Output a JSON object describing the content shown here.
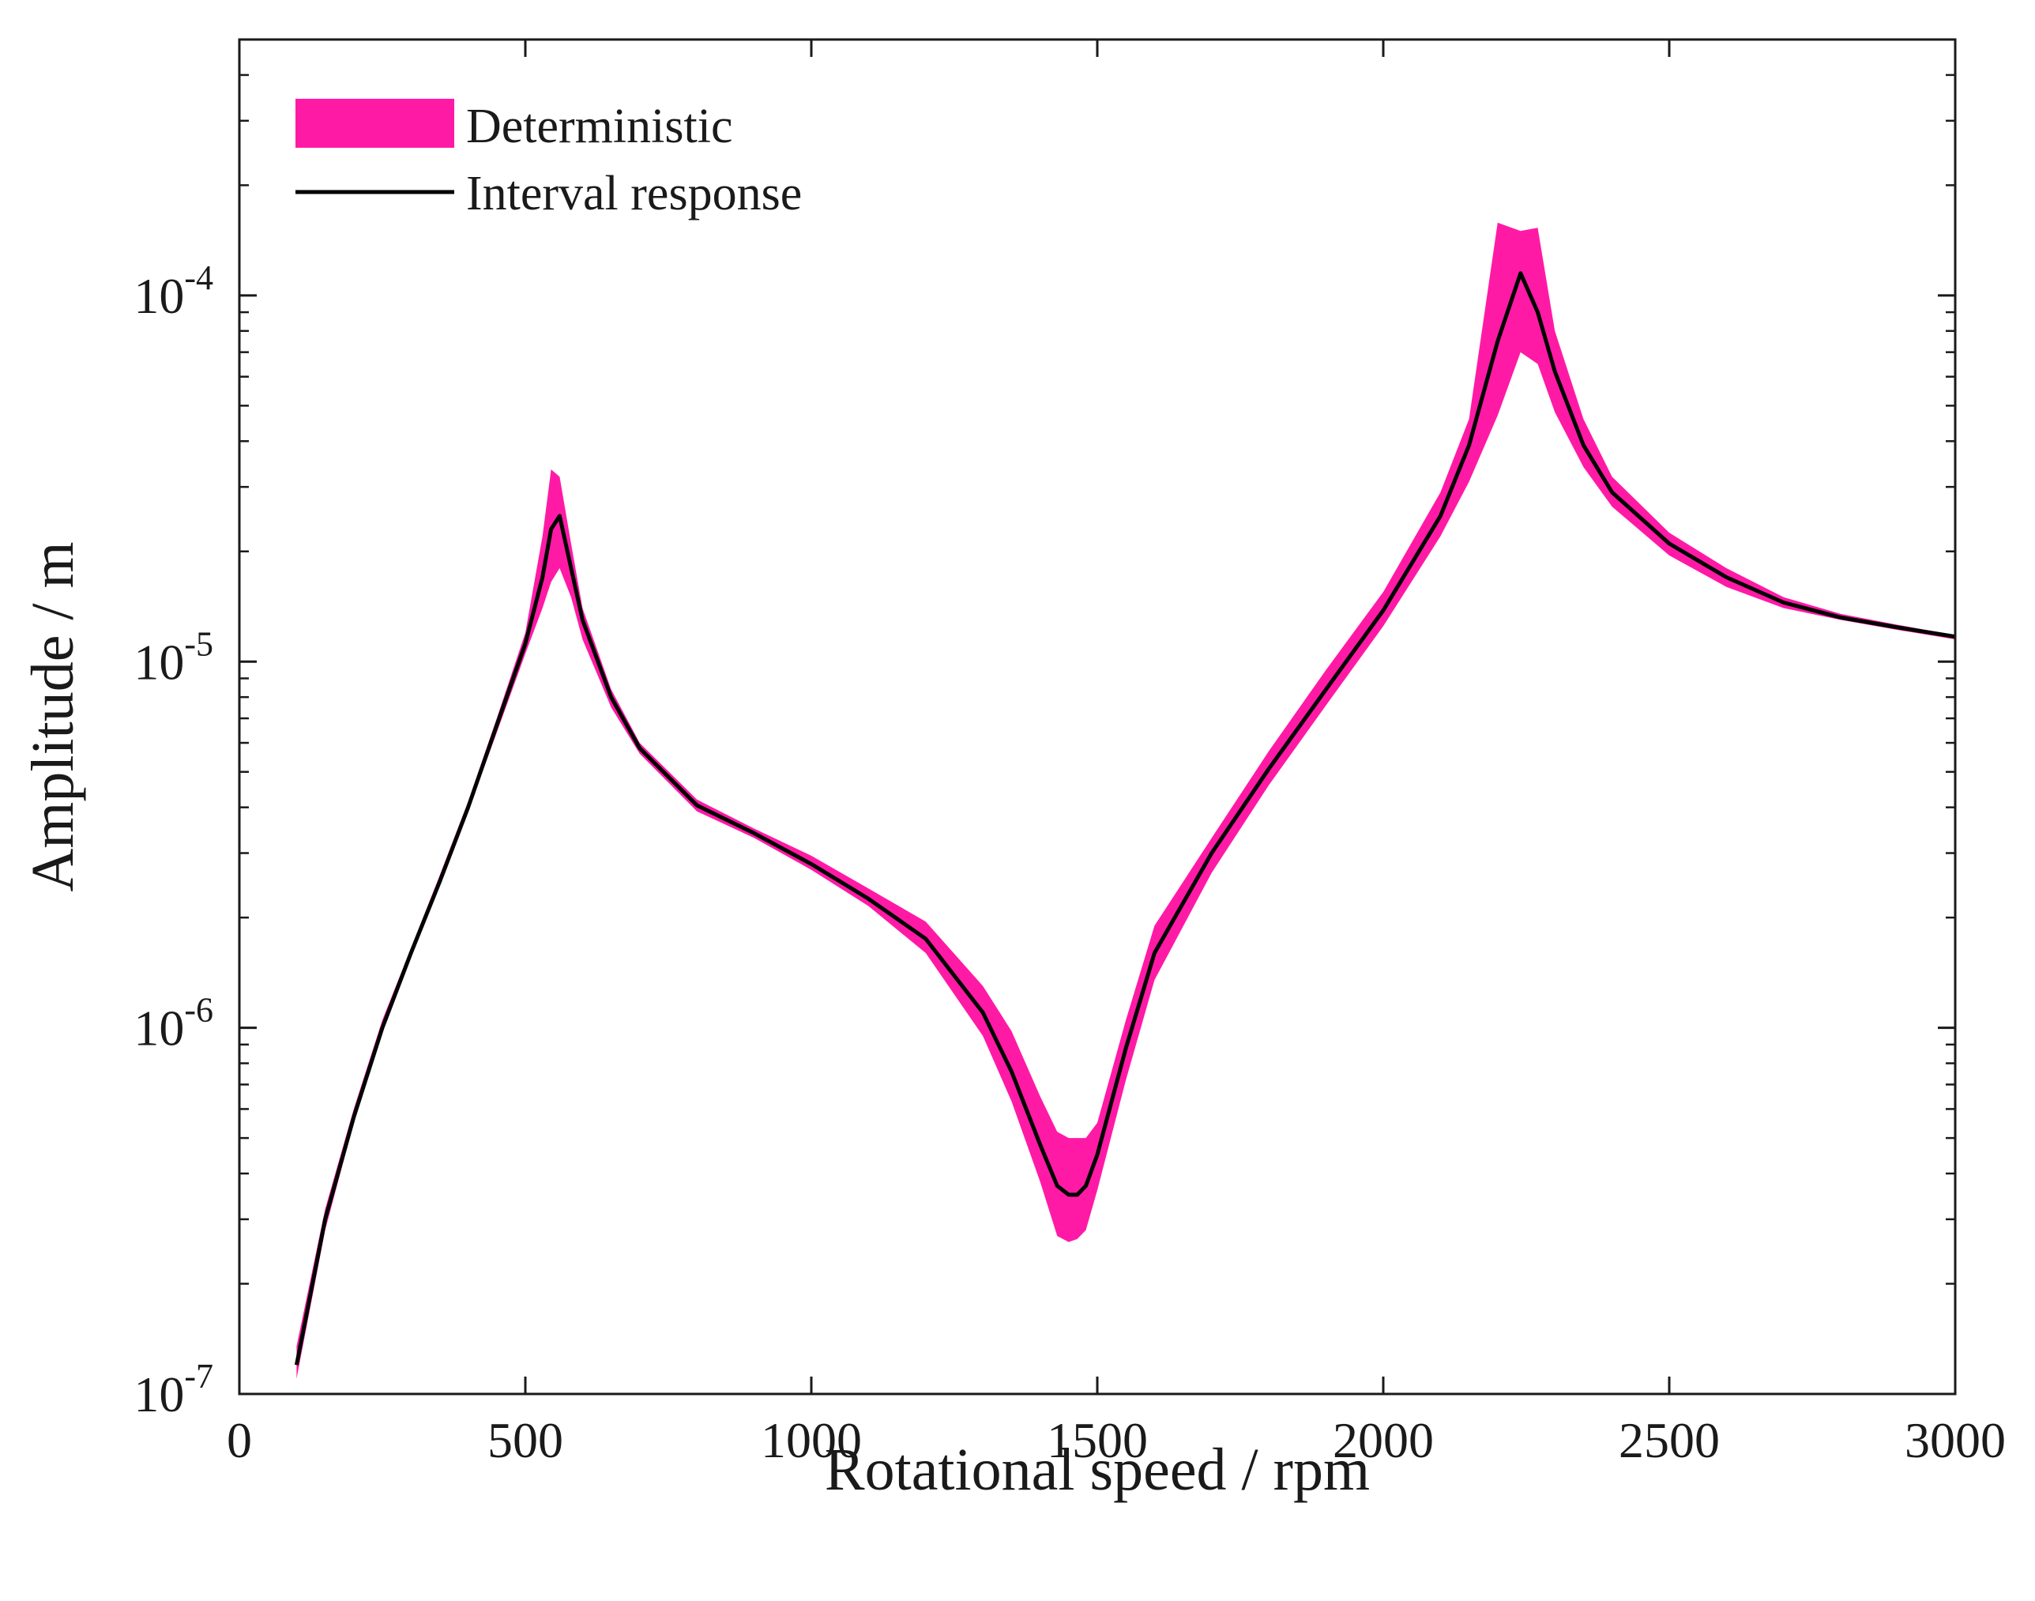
{
  "chart_data": {
    "type": "area",
    "title": "",
    "xlabel": "Rotational speed / rpm",
    "ylabel": "Amplitude / m",
    "xlim": [
      0,
      3000
    ],
    "ylim": [
      1e-07,
      0.0005
    ],
    "yscale": "log",
    "grid": false,
    "legend_position": "top-left",
    "x_ticks": [
      0,
      500,
      1000,
      1500,
      2000,
      2500,
      3000
    ],
    "x_tick_labels": [
      "0",
      "500",
      "1000",
      "1500",
      "2000",
      "2500",
      "3000"
    ],
    "y_ticks": [
      {
        "value": 1e-07,
        "base": "10",
        "exp": "-7"
      },
      {
        "value": 1e-06,
        "base": "10",
        "exp": "-6"
      },
      {
        "value": 1e-05,
        "base": "10",
        "exp": "-5"
      },
      {
        "value": 0.0001,
        "base": "10",
        "exp": "-4"
      }
    ],
    "colors": {
      "band": "#ff1aa6",
      "line": "#000000",
      "axis": "#1a1a1a"
    },
    "series": [
      {
        "name": "Deterministic",
        "kind": "band",
        "x": [
          100,
          150,
          200,
          250,
          300,
          350,
          400,
          450,
          500,
          530,
          545,
          560,
          580,
          600,
          650,
          700,
          800,
          900,
          1000,
          1100,
          1200,
          1300,
          1350,
          1400,
          1430,
          1450,
          1465,
          1480,
          1500,
          1550,
          1600,
          1700,
          1800,
          1900,
          2000,
          2100,
          2150,
          2200,
          2240,
          2270,
          2300,
          2350,
          2400,
          2500,
          2600,
          2700,
          2800,
          2900,
          3000
        ],
        "lower": [
          1.1e-07,
          2.8e-07,
          5.5e-07,
          9.7e-07,
          1.55e-06,
          2.45e-06,
          3.9e-06,
          6.4e-06,
          1.05e-05,
          1.4e-05,
          1.65e-05,
          1.8e-05,
          1.5e-05,
          1.15e-05,
          7.5e-06,
          5.6e-06,
          3.9e-06,
          3.3e-06,
          2.7e-06,
          2.15e-06,
          1.6e-06,
          9.5e-07,
          6.3e-07,
          3.8e-07,
          2.7e-07,
          2.6e-07,
          2.65e-07,
          2.8e-07,
          3.6e-07,
          7.2e-07,
          1.35e-06,
          2.65e-06,
          4.6e-06,
          7.6e-06,
          1.25e-05,
          2.2e-05,
          3.1e-05,
          4.7e-05,
          7e-05,
          6.5e-05,
          4.8e-05,
          3.4e-05,
          2.65e-05,
          1.95e-05,
          1.6e-05,
          1.4e-05,
          1.3e-05,
          1.22e-05,
          1.15e-05
        ],
        "upper": [
          1.35e-07,
          3.2e-07,
          6e-07,
          1.05e-06,
          1.65e-06,
          2.6e-06,
          4.15e-06,
          7e-06,
          1.2e-05,
          2.2e-05,
          3.35e-05,
          3.2e-05,
          2.1e-05,
          1.4e-05,
          8.4e-06,
          6e-06,
          4.2e-06,
          3.5e-06,
          2.95e-06,
          2.4e-06,
          1.95e-06,
          1.3e-06,
          9.8e-07,
          6.5e-07,
          5.2e-07,
          5e-07,
          5e-07,
          5e-07,
          5.5e-07,
          1.05e-06,
          1.9e-06,
          3.3e-06,
          5.7e-06,
          9.5e-06,
          1.55e-05,
          2.9e-05,
          4.6e-05,
          0.000158,
          0.00015,
          0.000153,
          8e-05,
          4.6e-05,
          3.2e-05,
          2.25e-05,
          1.8e-05,
          1.5e-05,
          1.35e-05,
          1.26e-05,
          1.18e-05
        ]
      },
      {
        "name": "Interval response",
        "kind": "line",
        "x": [
          100,
          150,
          200,
          250,
          300,
          350,
          400,
          450,
          500,
          530,
          545,
          560,
          580,
          600,
          650,
          700,
          800,
          900,
          1000,
          1100,
          1200,
          1300,
          1350,
          1400,
          1430,
          1450,
          1465,
          1480,
          1500,
          1550,
          1600,
          1700,
          1800,
          1900,
          2000,
          2100,
          2150,
          2200,
          2240,
          2270,
          2300,
          2350,
          2400,
          2500,
          2600,
          2700,
          2800,
          2900,
          3000
        ],
        "y": [
          1.2e-07,
          3e-07,
          5.7e-07,
          1e-06,
          1.6e-06,
          2.5e-06,
          4e-06,
          6.7e-06,
          1.12e-05,
          1.7e-05,
          2.3e-05,
          2.5e-05,
          1.8e-05,
          1.3e-05,
          8e-06,
          5.8e-06,
          4.05e-06,
          3.4e-06,
          2.8e-06,
          2.25e-06,
          1.75e-06,
          1.1e-06,
          7.6e-07,
          4.8e-07,
          3.7e-07,
          3.5e-07,
          3.5e-07,
          3.7e-07,
          4.5e-07,
          8.8e-07,
          1.6e-06,
          3e-06,
          5.1e-06,
          8.4e-06,
          1.38e-05,
          2.5e-05,
          3.9e-05,
          7.5e-05,
          0.000115,
          9e-05,
          6.2e-05,
          3.9e-05,
          2.9e-05,
          2.1e-05,
          1.7e-05,
          1.45e-05,
          1.32e-05,
          1.24e-05,
          1.17e-05
        ]
      }
    ]
  }
}
